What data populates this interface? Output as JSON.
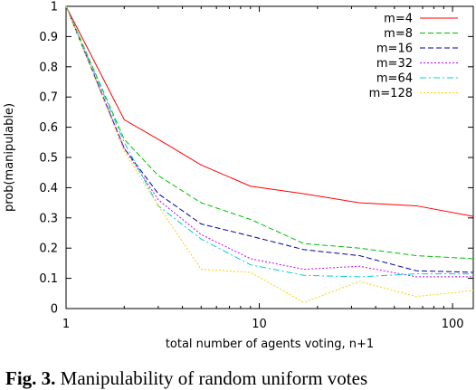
{
  "chart_data": {
    "type": "line",
    "xlabel": "total number of agents voting, n+1",
    "ylabel": "prob(manipulable)",
    "xscale": "log",
    "xlim": [
      1,
      128
    ],
    "ylim": [
      0,
      1
    ],
    "x_ticks": [
      1,
      10,
      100
    ],
    "x_tick_labels": [
      "1",
      "10",
      "100"
    ],
    "y_ticks": [
      0,
      0.1,
      0.2,
      0.3,
      0.4,
      0.5,
      0.6,
      0.7,
      0.8,
      0.9,
      1
    ],
    "y_tick_labels": [
      "0",
      "0.1",
      "0.2",
      "0.3",
      "0.4",
      "0.5",
      "0.6",
      "0.7",
      "0.8",
      "0.9",
      "1"
    ],
    "legend_position": "top-right",
    "x": [
      1,
      2,
      3,
      5,
      9,
      17,
      33,
      65,
      128
    ],
    "series": [
      {
        "name": "m=4",
        "color": "#ff0000",
        "dash": "solid",
        "values": [
          1.0,
          0.625,
          0.56,
          0.475,
          0.405,
          0.38,
          0.35,
          0.34,
          0.305
        ]
      },
      {
        "name": "m=8",
        "color": "#00c000",
        "dash": "dashed",
        "values": [
          1.0,
          0.56,
          0.44,
          0.35,
          0.295,
          0.215,
          0.2,
          0.175,
          0.165
        ]
      },
      {
        "name": "m=16",
        "color": "#0000a0",
        "dash": "dashed",
        "values": [
          1.0,
          0.53,
          0.38,
          0.28,
          0.24,
          0.195,
          0.175,
          0.125,
          0.12
        ]
      },
      {
        "name": "m=32",
        "color": "#c000ff",
        "dash": "dotted",
        "values": [
          1.0,
          0.53,
          0.36,
          0.245,
          0.165,
          0.13,
          0.14,
          0.105,
          0.105
        ]
      },
      {
        "name": "m=64",
        "color": "#00d0d0",
        "dash": "dashdot",
        "values": [
          1.0,
          0.55,
          0.34,
          0.23,
          0.145,
          0.11,
          0.105,
          0.115,
          0.115
        ]
      },
      {
        "name": "m=128",
        "color": "#ffd000",
        "dash": "dotted",
        "values": [
          1.0,
          0.52,
          0.34,
          0.13,
          0.12,
          0.02,
          0.09,
          0.04,
          0.06
        ]
      }
    ]
  },
  "caption": {
    "label": "Fig. 3.",
    "text": "Manipulability of random uniform votes"
  }
}
